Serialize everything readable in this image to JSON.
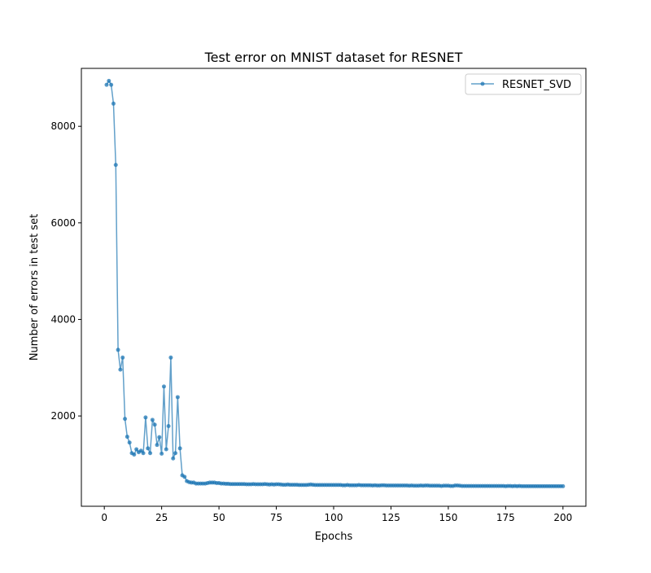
{
  "chart_data": {
    "type": "line",
    "title": "Test error on MNIST dataset for RESNET",
    "xlabel": "Epochs",
    "ylabel": "Number of errors in test set",
    "xlim": [
      -10,
      210
    ],
    "ylim": [
      130,
      9200
    ],
    "xticks": [
      0,
      25,
      50,
      75,
      100,
      125,
      150,
      175,
      200
    ],
    "yticks": [
      2000,
      4000,
      6000,
      8000
    ],
    "grid": false,
    "legend_position": "top-right",
    "series": [
      {
        "name": "RESNET_SVD",
        "color": "#1f77b4",
        "marker": "circle",
        "head_x": [
          1,
          2,
          3,
          4,
          5,
          6,
          7,
          8,
          9,
          10,
          11,
          12,
          13,
          14,
          15,
          16,
          17,
          18,
          19,
          20,
          21,
          22,
          23,
          24,
          25,
          26,
          27,
          28,
          29,
          30,
          31,
          32,
          33,
          34,
          35,
          36,
          37,
          38,
          39,
          40,
          41,
          42,
          43,
          44,
          45,
          46,
          47,
          48,
          49,
          50
        ],
        "head_y": [
          8860,
          8940,
          8860,
          8470,
          7200,
          3370,
          2960,
          3210,
          1940,
          1570,
          1450,
          1230,
          1200,
          1310,
          1250,
          1280,
          1230,
          1970,
          1330,
          1230,
          1920,
          1820,
          1400,
          1560,
          1220,
          2610,
          1310,
          1790,
          3210,
          1120,
          1230,
          2390,
          1330,
          770,
          740,
          650,
          630,
          620,
          620,
          600,
          600,
          600,
          600,
          600,
          610,
          620,
          620,
          620,
          610,
          610
        ],
        "tail_x_start": 51,
        "tail_x_end": 200,
        "tail_y": [
          600,
          600,
          595,
          595,
          590,
          590,
          590,
          590,
          590,
          590,
          590,
          585,
          585,
          585,
          590,
          585,
          585,
          585,
          585,
          590,
          585,
          580,
          585,
          580,
          585,
          585,
          580,
          575,
          575,
          580,
          575,
          575,
          575,
          575,
          570,
          570,
          570,
          570,
          575,
          580,
          575,
          570,
          570,
          570,
          570,
          570,
          570,
          570,
          570,
          570,
          570,
          570,
          570,
          565,
          565,
          570,
          565,
          565,
          565,
          565,
          570,
          565,
          565,
          565,
          565,
          565,
          560,
          565,
          560,
          560,
          565,
          565,
          560,
          560,
          560,
          560,
          560,
          560,
          560,
          560,
          560,
          560,
          555,
          560,
          555,
          555,
          555,
          560,
          555,
          560,
          560,
          555,
          555,
          555,
          555,
          555,
          550,
          555,
          555,
          555,
          550,
          550,
          560,
          560,
          555,
          550,
          550,
          550,
          550,
          550,
          550,
          550,
          550,
          550,
          550,
          550,
          550,
          550,
          550,
          550,
          550,
          550,
          550,
          550,
          545,
          550,
          550,
          545,
          550,
          545,
          550,
          545,
          545,
          545,
          545,
          545,
          545,
          545,
          545,
          545,
          545,
          545,
          545,
          545,
          545,
          545,
          545,
          545,
          545,
          545
        ]
      }
    ]
  }
}
